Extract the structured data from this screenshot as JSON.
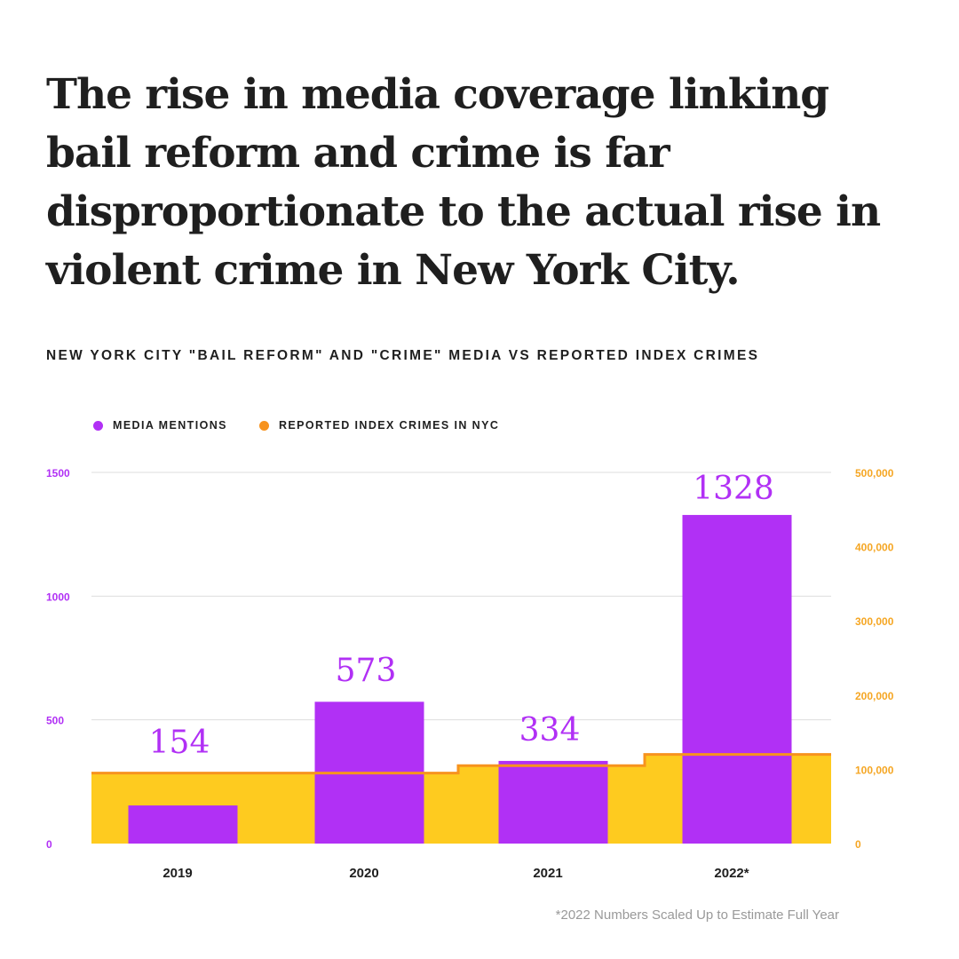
{
  "headline": {
    "line1": "The rise in media coverage linking",
    "line2": "bail reform and crime is far",
    "line3": "disproportionate to the actual rise in",
    "line4": "violent crime in New York City."
  },
  "subtitle": "NEW YORK CITY \"BAIL REFORM\" AND \"CRIME\" MEDIA VS REPORTED INDEX CRIMES",
  "legend": {
    "media": "MEDIA MENTIONS",
    "crimes": "REPORTED INDEX CRIMES IN NYC"
  },
  "colors": {
    "media": "#b130f5",
    "crimes_fill": "#fecb1f",
    "crimes_line": "#f7931e",
    "left_axis": "#b130f5",
    "right_axis": "#f5a623",
    "grid": "#dddddd",
    "text": "#1f1f1f"
  },
  "chart_data": {
    "type": "bar",
    "categories": [
      "2019",
      "2020",
      "2021",
      "2022*"
    ],
    "series": [
      {
        "name": "MEDIA MENTIONS",
        "type": "bar",
        "axis": "left",
        "values": [
          154,
          573,
          334,
          1328
        ],
        "data_labels": [
          "154",
          "573",
          "334",
          "1328"
        ]
      },
      {
        "name": "REPORTED INDEX CRIMES IN NYC",
        "type": "area",
        "axis": "right",
        "values": [
          95000,
          95000,
          105000,
          120000
        ]
      }
    ],
    "y_left": {
      "ticks": [
        0,
        500,
        1000,
        1500
      ],
      "tick_labels": [
        "0",
        "500",
        "1000",
        "1500"
      ],
      "ylim": [
        0,
        1500
      ]
    },
    "y_right": {
      "ticks": [
        0,
        100000,
        200000,
        300000,
        400000,
        500000
      ],
      "tick_labels": [
        "0",
        "100,000",
        "200,000",
        "300,000",
        "400,000",
        "500,000"
      ],
      "ylim": [
        0,
        500000
      ]
    },
    "grid": true,
    "legend_position": "top-left"
  },
  "footnote": "*2022 Numbers Scaled Up to Estimate Full Year"
}
